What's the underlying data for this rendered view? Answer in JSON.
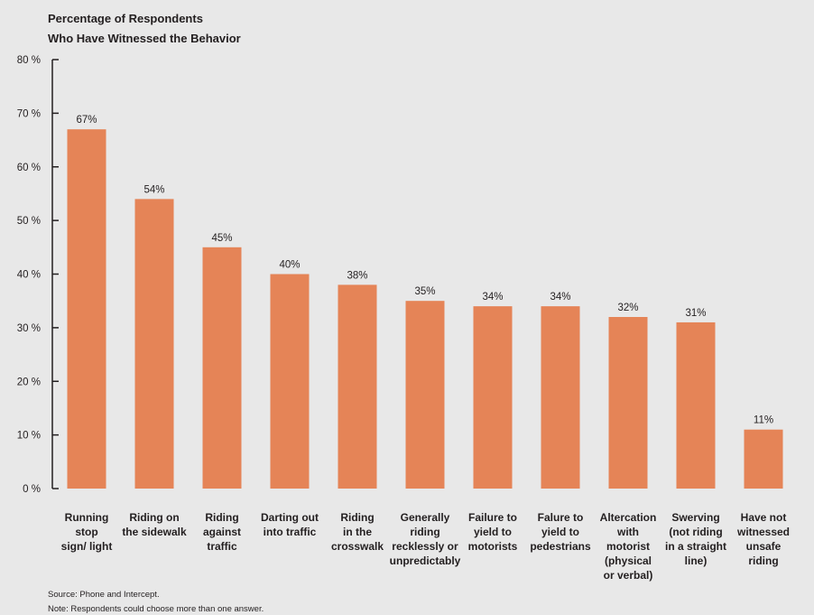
{
  "chart_data": {
    "type": "bar",
    "title_lines": [
      "Percentage of Respondents",
      "Who Have Witnessed the Behavior"
    ],
    "xlabel": "",
    "ylabel": "",
    "ylim": [
      0,
      80
    ],
    "yticks": [
      0,
      10,
      20,
      30,
      40,
      50,
      60,
      70,
      80
    ],
    "ytick_labels": [
      "0 %",
      "10 %",
      "20 %",
      "30 %",
      "40 %",
      "50 %",
      "60 %",
      "70 %",
      "80 %"
    ],
    "grid": false,
    "bar_color": "#e58457",
    "categories": [
      [
        "Running",
        "stop",
        "sign/ light"
      ],
      [
        "Riding on",
        "the sidewalk"
      ],
      [
        "Riding",
        "against",
        "traffic"
      ],
      [
        "Darting out",
        "into traffic"
      ],
      [
        "Riding",
        "in the",
        "crosswalk"
      ],
      [
        "Generally",
        "riding",
        "recklessly or",
        "unpredictably"
      ],
      [
        "Failure to",
        "yield to",
        "motorists"
      ],
      [
        "Falure to",
        "yield to",
        "pedestrians"
      ],
      [
        "Altercation",
        "with",
        "motorist",
        "(physical",
        "or verbal)"
      ],
      [
        "Swerving",
        "(not riding",
        "in a straight",
        "line)"
      ],
      [
        "Have not",
        "witnessed",
        "unsafe",
        "riding"
      ]
    ],
    "values": [
      67,
      54,
      45,
      40,
      38,
      35,
      34,
      34,
      32,
      31,
      11
    ],
    "value_labels": [
      "67%",
      "54%",
      "45%",
      "40%",
      "38%",
      "35%",
      "34%",
      "34%",
      "32%",
      "31%",
      "11%"
    ]
  },
  "notes": {
    "source": "Source: Phone and Intercept.",
    "note": "Note: Respondents could choose more than one answer."
  }
}
